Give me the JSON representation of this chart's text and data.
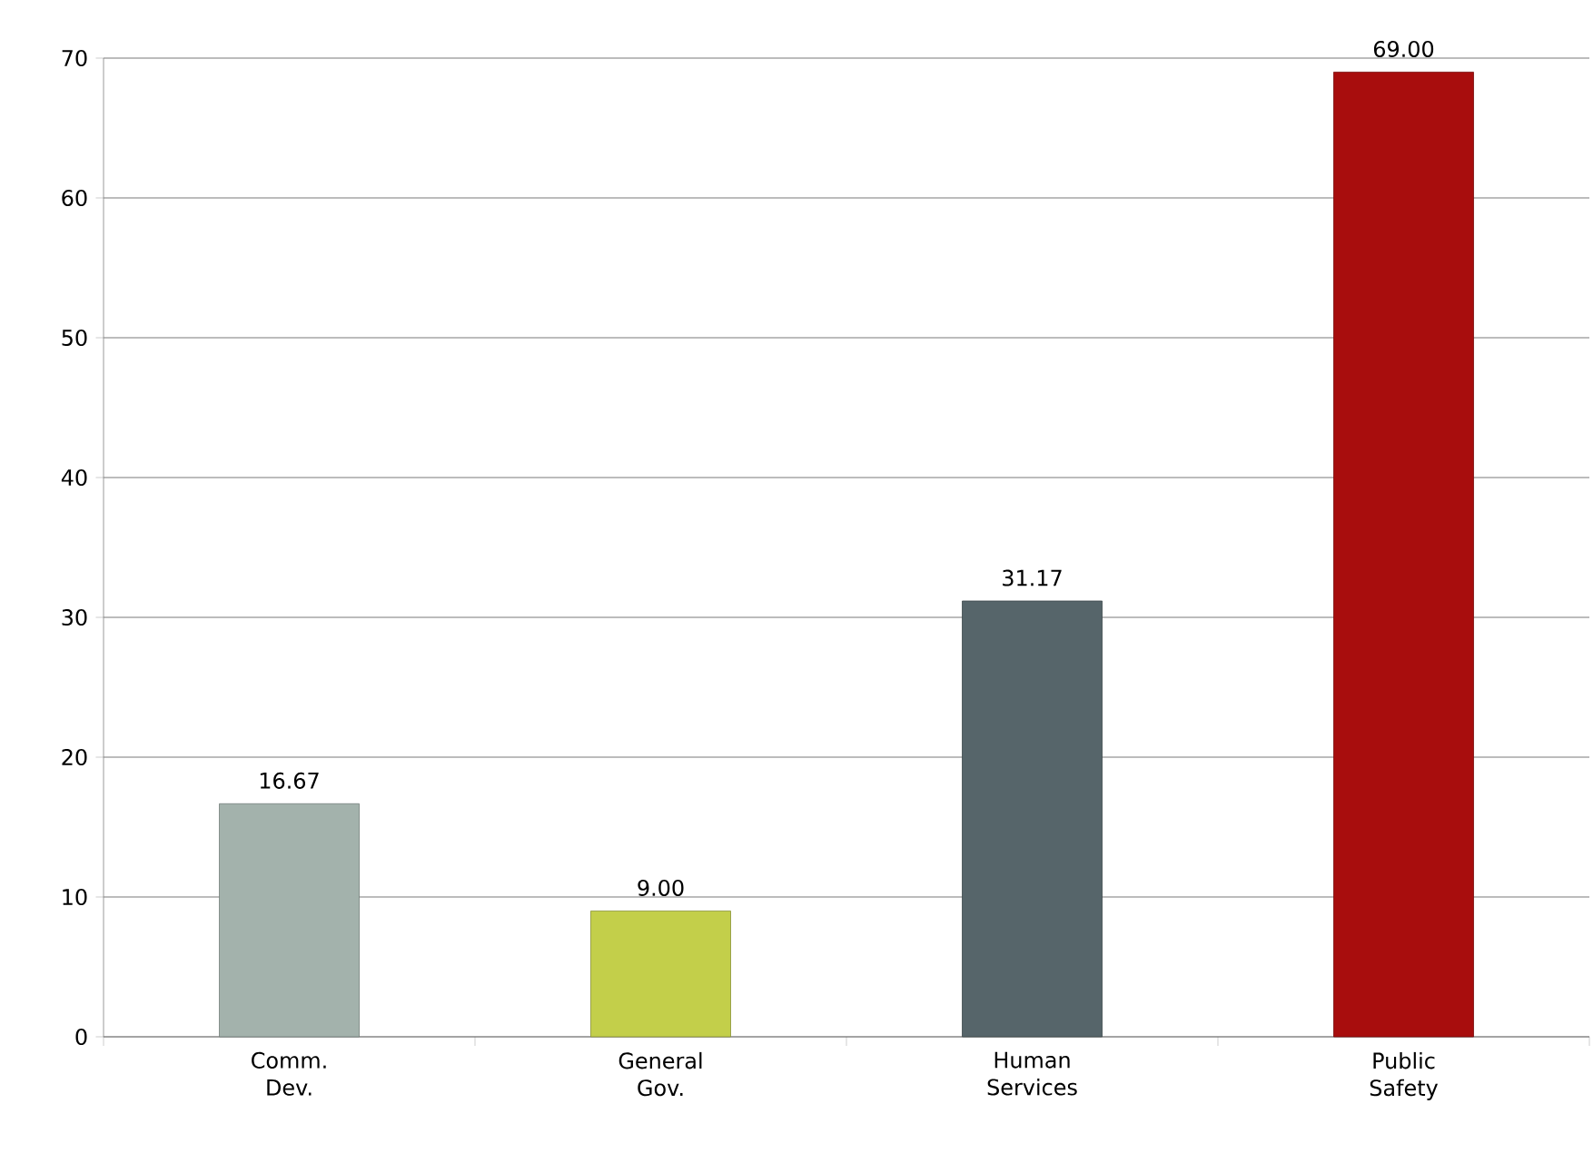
{
  "chart_data": {
    "type": "bar",
    "categories": [
      "Comm. Dev.",
      "General Gov.",
      "Human Services",
      "Public Safety"
    ],
    "values": [
      16.67,
      9.0,
      31.17,
      69.0
    ],
    "value_labels": [
      "16.67",
      "9.00",
      "31.17",
      "69.00"
    ],
    "colors": [
      "#a3b2ac",
      "#c3cf4a",
      "#56656a",
      "#a80d0d"
    ],
    "ylim": [
      0,
      70
    ],
    "yticks": [
      0,
      10,
      20,
      30,
      40,
      50,
      60,
      70
    ],
    "grid": "y"
  }
}
